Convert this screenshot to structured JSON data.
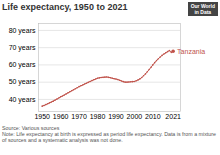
{
  "chart_data": {
    "type": "line",
    "title": "Life expectancy, 1950 to 2021",
    "x": [
      1950,
      1951,
      1952,
      1953,
      1954,
      1955,
      1956,
      1957,
      1958,
      1959,
      1960,
      1961,
      1962,
      1963,
      1964,
      1965,
      1966,
      1967,
      1968,
      1969,
      1970,
      1971,
      1972,
      1973,
      1974,
      1975,
      1976,
      1977,
      1978,
      1979,
      1980,
      1981,
      1982,
      1983,
      1984,
      1985,
      1986,
      1987,
      1988,
      1989,
      1990,
      1991,
      1992,
      1993,
      1994,
      1995,
      1996,
      1997,
      1998,
      1999,
      2000,
      2001,
      2002,
      2003,
      2004,
      2005,
      2006,
      2007,
      2008,
      2009,
      2010,
      2011,
      2012,
      2013,
      2014,
      2015,
      2016,
      2017,
      2018,
      2019,
      2020,
      2021
    ],
    "series": [
      {
        "name": "Tanzania",
        "color": "#c0524a",
        "marker": "circle",
        "values": [
          36.1,
          36.5,
          37.0,
          37.5,
          38.0,
          38.5,
          39.0,
          39.6,
          40.2,
          40.8,
          41.5,
          42.0,
          42.6,
          43.2,
          43.8,
          44.4,
          45.0,
          45.6,
          46.2,
          46.8,
          47.4,
          47.9,
          48.4,
          48.9,
          49.4,
          49.9,
          50.4,
          50.9,
          51.4,
          51.8,
          52.3,
          52.5,
          52.7,
          52.8,
          52.9,
          53.0,
          52.8,
          52.6,
          52.3,
          52.0,
          51.8,
          51.5,
          51.1,
          50.7,
          50.3,
          50.0,
          50.0,
          50.1,
          50.2,
          50.3,
          50.4,
          50.8,
          51.3,
          51.9,
          52.7,
          53.7,
          54.8,
          56.0,
          57.3,
          58.6,
          60.0,
          61.3,
          62.5,
          63.6,
          64.6,
          65.5,
          66.3,
          67.0,
          67.7,
          68.3,
          67.2,
          67.9
        ]
      }
    ],
    "xlim": [
      1948,
      2025
    ],
    "xticks": [
      1950,
      1960,
      1970,
      1980,
      1990,
      2000,
      2010,
      2021
    ],
    "ylim": [
      33,
      84
    ],
    "yticks": [
      {
        "value": 40,
        "label": "40 years"
      },
      {
        "value": 50,
        "label": "50 years"
      },
      {
        "value": 60,
        "label": "60 years"
      },
      {
        "value": 70,
        "label": "70 years"
      },
      {
        "value": 80,
        "label": "80 years"
      }
    ],
    "grid": "y",
    "annotations": [
      "Our World\nin Data",
      "Source: Various sources",
      "Note: Life expectancy at birth is expressed as period life expectancy. Data is from a mixture of sources and a systematic analysis was not done."
    ]
  }
}
